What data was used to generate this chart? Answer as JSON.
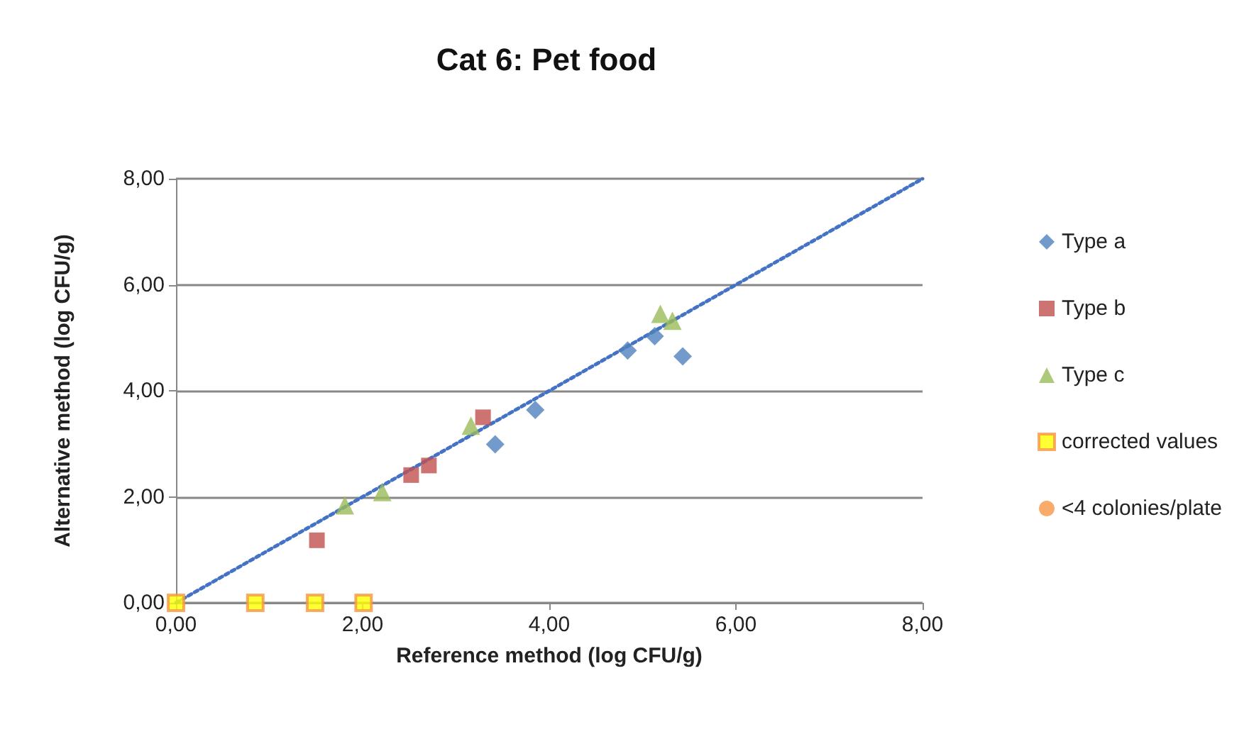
{
  "chart_data": {
    "type": "scatter",
    "title": "Cat 6: Pet food",
    "xlabel": "Reference method (log CFU/g)",
    "ylabel": "Alternative method (log CFU/g)",
    "xlim": [
      0,
      8
    ],
    "ylim": [
      0,
      8
    ],
    "xticks": [
      {
        "value": 0,
        "label": "0,00"
      },
      {
        "value": 2,
        "label": "2,00"
      },
      {
        "value": 4,
        "label": "4,00"
      },
      {
        "value": 6,
        "label": "6,00"
      },
      {
        "value": 8,
        "label": "8,00"
      }
    ],
    "yticks": [
      {
        "value": 0,
        "label": "0,00"
      },
      {
        "value": 2,
        "label": "2,00"
      },
      {
        "value": 4,
        "label": "4,00"
      },
      {
        "value": 6,
        "label": "6,00"
      },
      {
        "value": 8,
        "label": "8,00"
      }
    ],
    "grid": "y",
    "legend": "right",
    "series": [
      {
        "name": "Type a",
        "color": "#4f81bd",
        "marker": "diamond",
        "x": [
          3.42,
          3.85,
          4.84,
          5.13,
          5.43
        ],
        "values": [
          2.99,
          3.64,
          4.76,
          5.03,
          4.65
        ]
      },
      {
        "name": "Type b",
        "color": "#c0504d",
        "marker": "square",
        "x": [
          1.51,
          2.52,
          2.71,
          3.29
        ],
        "values": [
          1.18,
          2.41,
          2.59,
          3.5
        ]
      },
      {
        "name": "Type c",
        "color": "#9bbb59",
        "marker": "triangle",
        "x": [
          1.81,
          2.21,
          3.16,
          5.19,
          5.32
        ],
        "values": [
          1.84,
          2.09,
          3.34,
          5.45,
          5.32
        ]
      },
      {
        "name": "corrected values",
        "color": "#ffff00",
        "marker": "square",
        "x": [
          0,
          0.85,
          1.49,
          2.01
        ],
        "values": [
          0,
          0,
          0,
          0
        ]
      },
      {
        "name": "<4 colonies/plate",
        "color": "#f79646",
        "marker": "circle"
      },
      {
        "type": "line",
        "color": "#4472c4",
        "line_style": "dotted",
        "marker": "none",
        "x": [
          0,
          8
        ],
        "values": [
          0,
          8
        ]
      }
    ]
  }
}
